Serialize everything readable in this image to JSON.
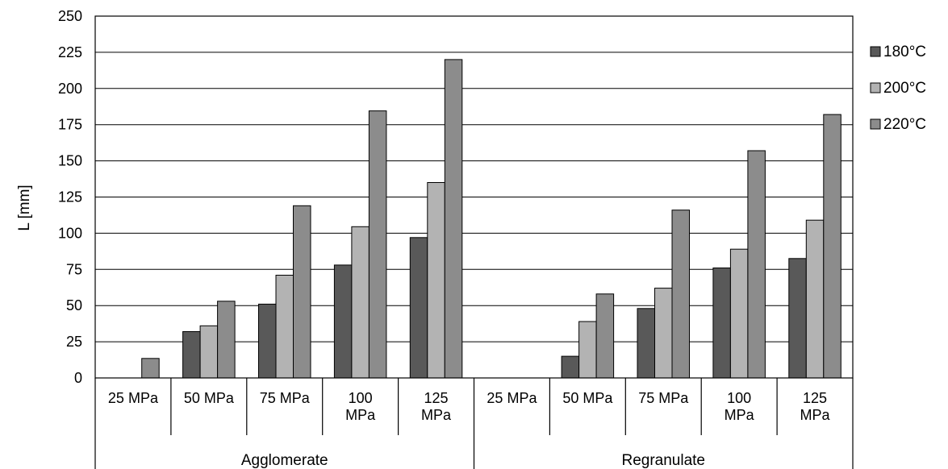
{
  "chart_data": {
    "type": "bar",
    "ylabel": "L [mm]",
    "ylim": [
      0,
      250
    ],
    "ytick_step": 25,
    "grid": true,
    "legend_position": "right",
    "groups": [
      {
        "name": "Agglomerate",
        "categories": [
          "25 MPa",
          "50 MPa",
          "75 MPa",
          "100 MPa",
          "125 MPa"
        ]
      },
      {
        "name": "Regranulate",
        "categories": [
          "25 MPa",
          "50 MPa",
          "75 MPa",
          "100 MPa",
          "125 MPa"
        ]
      }
    ],
    "series": [
      {
        "name": "180°C",
        "color": "#595959",
        "values": [
          0,
          32,
          51,
          78,
          97,
          0,
          15,
          48,
          76,
          82.5
        ]
      },
      {
        "name": "200°C",
        "color": "#b3b3b3",
        "values": [
          0,
          36,
          71,
          104.5,
          135,
          0,
          39,
          62,
          89,
          109
        ]
      },
      {
        "name": "220°C",
        "color": "#8c8c8c",
        "values": [
          13.5,
          53,
          119,
          184.5,
          220,
          0,
          58,
          116,
          157,
          182
        ]
      }
    ]
  }
}
